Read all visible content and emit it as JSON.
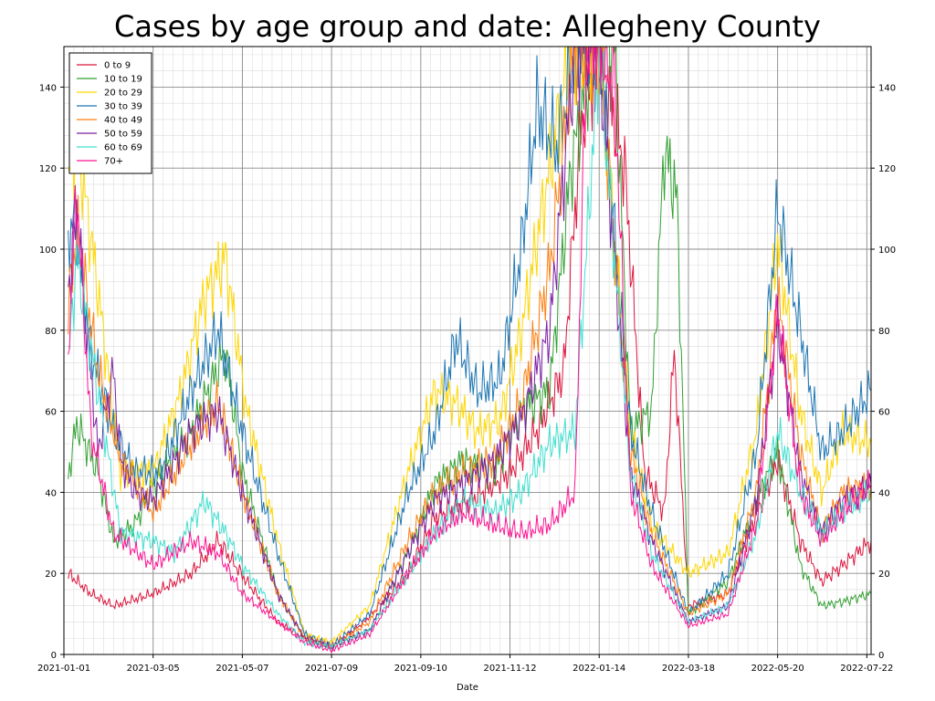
{
  "chart_data": {
    "type": "line",
    "title": "Cases by age group and date: Allegheny County",
    "xlabel": "Date",
    "ylabel": "",
    "xlim": [
      "2021-01-01",
      "2022-07-25"
    ],
    "ylim": [
      0,
      150
    ],
    "x_ticks": [
      "2021-01-01",
      "2021-03-05",
      "2021-05-07",
      "2021-07-09",
      "2021-09-10",
      "2021-11-12",
      "2022-01-14",
      "2022-03-18",
      "2022-05-20",
      "2022-07-22"
    ],
    "y_ticks": [
      0,
      20,
      40,
      60,
      80,
      100,
      120,
      140
    ],
    "grid": true,
    "legend_position": "top-left",
    "series": [
      {
        "name": "0 to 9",
        "color": "#dc143c",
        "x": [
          "2021-01-04",
          "2021-01-20",
          "2021-02-05",
          "2021-03-05",
          "2021-04-01",
          "2021-04-20",
          "2021-05-10",
          "2021-06-01",
          "2021-06-20",
          "2021-07-09",
          "2021-08-01",
          "2021-09-01",
          "2021-09-20",
          "2021-10-15",
          "2021-11-12",
          "2021-12-01",
          "2021-12-20",
          "2022-01-01",
          "2022-01-14",
          "2022-02-01",
          "2022-02-15",
          "2022-03-01",
          "2022-03-08",
          "2022-03-18",
          "2022-04-15",
          "2022-05-05",
          "2022-05-20",
          "2022-06-05",
          "2022-06-20",
          "2022-07-05",
          "2022-07-25"
        ],
        "y": [
          20,
          15,
          12,
          15,
          20,
          28,
          18,
          8,
          4,
          2,
          8,
          20,
          34,
          38,
          45,
          55,
          70,
          130,
          150,
          120,
          45,
          35,
          75,
          12,
          15,
          35,
          48,
          28,
          18,
          22,
          28
        ]
      },
      {
        "name": "10 to 19",
        "color": "#32a032",
        "x": [
          "2021-01-04",
          "2021-01-10",
          "2021-01-25",
          "2021-02-05",
          "2021-02-20",
          "2021-03-05",
          "2021-04-01",
          "2021-04-25",
          "2021-05-07",
          "2021-06-01",
          "2021-06-20",
          "2021-07-09",
          "2021-08-05",
          "2021-09-01",
          "2021-09-20",
          "2021-10-10",
          "2021-11-01",
          "2021-11-20",
          "2021-12-10",
          "2021-12-25",
          "2022-01-10",
          "2022-01-25",
          "2022-02-05",
          "2022-02-20",
          "2022-03-01",
          "2022-03-10",
          "2022-03-18",
          "2022-04-15",
          "2022-05-05",
          "2022-05-20",
          "2022-06-05",
          "2022-06-20",
          "2022-07-05",
          "2022-07-25"
        ],
        "y": [
          44,
          57,
          45,
          28,
          32,
          42,
          55,
          75,
          45,
          15,
          4,
          2,
          6,
          25,
          42,
          48,
          45,
          60,
          65,
          120,
          150,
          150,
          55,
          60,
          125,
          112,
          10,
          18,
          38,
          50,
          22,
          12,
          13,
          15
        ]
      },
      {
        "name": "20 to 29",
        "color": "#ffd700",
        "x": [
          "2021-01-04",
          "2021-01-10",
          "2021-01-25",
          "2021-02-10",
          "2021-03-05",
          "2021-03-25",
          "2021-04-10",
          "2021-04-25",
          "2021-05-10",
          "2021-06-01",
          "2021-06-20",
          "2021-07-09",
          "2021-08-05",
          "2021-09-01",
          "2021-09-20",
          "2021-10-05",
          "2021-10-20",
          "2021-11-05",
          "2021-11-20",
          "2021-12-10",
          "2021-12-25",
          "2022-01-14",
          "2022-02-05",
          "2022-02-20",
          "2022-03-18",
          "2022-04-15",
          "2022-05-05",
          "2022-05-20",
          "2022-06-05",
          "2022-06-20",
          "2022-07-05",
          "2022-07-25"
        ],
        "y": [
          115,
          128,
          90,
          45,
          45,
          65,
          88,
          98,
          60,
          28,
          5,
          3,
          12,
          45,
          65,
          62,
          55,
          58,
          80,
          120,
          150,
          150,
          55,
          32,
          20,
          25,
          55,
          102,
          60,
          40,
          55,
          52
        ]
      },
      {
        "name": "30 to 39",
        "color": "#1f77b4",
        "x": [
          "2021-01-04",
          "2021-01-08",
          "2021-01-20",
          "2021-02-05",
          "2021-02-20",
          "2021-03-10",
          "2021-04-01",
          "2021-04-20",
          "2021-05-07",
          "2021-06-01",
          "2021-06-20",
          "2021-07-09",
          "2021-08-05",
          "2021-09-01",
          "2021-09-20",
          "2021-10-05",
          "2021-10-20",
          "2021-11-05",
          "2021-11-20",
          "2021-12-01",
          "2021-12-15",
          "2021-12-28",
          "2022-01-14",
          "2022-02-05",
          "2022-02-20",
          "2022-03-18",
          "2022-04-15",
          "2022-05-05",
          "2022-05-20",
          "2022-06-05",
          "2022-06-20",
          "2022-07-05",
          "2022-07-25"
        ],
        "y": [
          102,
          109,
          75,
          55,
          45,
          45,
          65,
          80,
          55,
          25,
          5,
          2,
          10,
          40,
          55,
          78,
          65,
          68,
          100,
          135,
          125,
          150,
          150,
          55,
          35,
          10,
          20,
          50,
          110,
          80,
          50,
          55,
          65
        ]
      },
      {
        "name": "40 to 49",
        "color": "#ff7f0e",
        "x": [
          "2021-01-04",
          "2021-01-10",
          "2021-01-25",
          "2021-02-10",
          "2021-03-05",
          "2021-04-01",
          "2021-04-20",
          "2021-05-07",
          "2021-06-01",
          "2021-06-20",
          "2021-07-09",
          "2021-08-05",
          "2021-09-01",
          "2021-09-20",
          "2021-10-10",
          "2021-11-01",
          "2021-11-20",
          "2021-12-10",
          "2021-12-28",
          "2022-01-14",
          "2022-02-05",
          "2022-02-20",
          "2022-03-18",
          "2022-04-15",
          "2022-05-05",
          "2022-05-20",
          "2022-06-05",
          "2022-06-20",
          "2022-07-05",
          "2022-07-25"
        ],
        "y": [
          85,
          105,
          70,
          48,
          35,
          52,
          62,
          40,
          15,
          4,
          2,
          8,
          28,
          40,
          45,
          48,
          62,
          95,
          150,
          150,
          50,
          30,
          10,
          15,
          40,
          88,
          50,
          30,
          40,
          42
        ]
      },
      {
        "name": "50 to 59",
        "color": "#7b1fa2",
        "x": [
          "2021-01-04",
          "2021-01-10",
          "2021-01-25",
          "2021-02-05",
          "2021-02-10",
          "2021-02-20",
          "2021-03-05",
          "2021-04-01",
          "2021-04-20",
          "2021-05-07",
          "2021-06-01",
          "2021-06-20",
          "2021-07-09",
          "2021-08-05",
          "2021-09-01",
          "2021-09-20",
          "2021-10-10",
          "2021-11-01",
          "2021-11-20",
          "2021-12-10",
          "2021-12-28",
          "2022-01-14",
          "2022-02-05",
          "2022-02-20",
          "2022-03-18",
          "2022-04-15",
          "2022-05-05",
          "2022-05-20",
          "2022-06-05",
          "2022-06-20",
          "2022-07-05",
          "2022-07-25"
        ],
        "y": [
          90,
          108,
          50,
          70,
          48,
          40,
          38,
          55,
          60,
          40,
          15,
          4,
          2,
          6,
          25,
          38,
          42,
          48,
          58,
          80,
          150,
          150,
          45,
          28,
          8,
          12,
          38,
          82,
          45,
          30,
          38,
          42
        ]
      },
      {
        "name": "60 to 69",
        "color": "#40e0d0",
        "x": [
          "2021-01-04",
          "2021-01-10",
          "2021-01-25",
          "2021-02-10",
          "2021-03-05",
          "2021-03-20",
          "2021-04-10",
          "2021-04-25",
          "2021-05-07",
          "2021-06-01",
          "2021-06-20",
          "2021-07-09",
          "2021-08-05",
          "2021-09-01",
          "2021-09-20",
          "2021-10-10",
          "2021-11-01",
          "2021-11-20",
          "2021-12-10",
          "2021-12-28",
          "2022-01-14",
          "2022-02-05",
          "2022-02-20",
          "2022-03-18",
          "2022-04-15",
          "2022-05-05",
          "2022-05-20",
          "2022-06-05",
          "2022-06-20",
          "2022-07-05",
          "2022-07-25"
        ],
        "y": [
          72,
          98,
          65,
          30,
          28,
          25,
          38,
          30,
          22,
          10,
          3,
          2,
          6,
          20,
          30,
          38,
          35,
          40,
          52,
          55,
          150,
          45,
          25,
          8,
          12,
          30,
          55,
          40,
          30,
          35,
          40
        ]
      },
      {
        "name": "70+",
        "color": "#ff1493",
        "x": [
          "2021-01-04",
          "2021-01-10",
          "2021-01-20",
          "2021-02-05",
          "2021-03-05",
          "2021-04-01",
          "2021-04-20",
          "2021-05-07",
          "2021-06-01",
          "2021-06-20",
          "2021-07-09",
          "2021-08-05",
          "2021-09-01",
          "2021-09-20",
          "2021-10-10",
          "2021-11-01",
          "2021-11-20",
          "2021-12-10",
          "2021-12-28",
          "2022-01-05",
          "2022-01-14",
          "2022-01-25",
          "2022-02-05",
          "2022-02-20",
          "2022-03-18",
          "2022-04-15",
          "2022-05-05",
          "2022-05-20",
          "2022-06-05",
          "2022-06-20",
          "2022-07-05",
          "2022-07-25"
        ],
        "y": [
          75,
          115,
          55,
          30,
          22,
          28,
          25,
          15,
          8,
          3,
          1,
          5,
          20,
          30,
          35,
          32,
          30,
          32,
          40,
          150,
          150,
          140,
          40,
          22,
          7,
          10,
          32,
          85,
          40,
          28,
          35,
          42
        ]
      }
    ]
  }
}
